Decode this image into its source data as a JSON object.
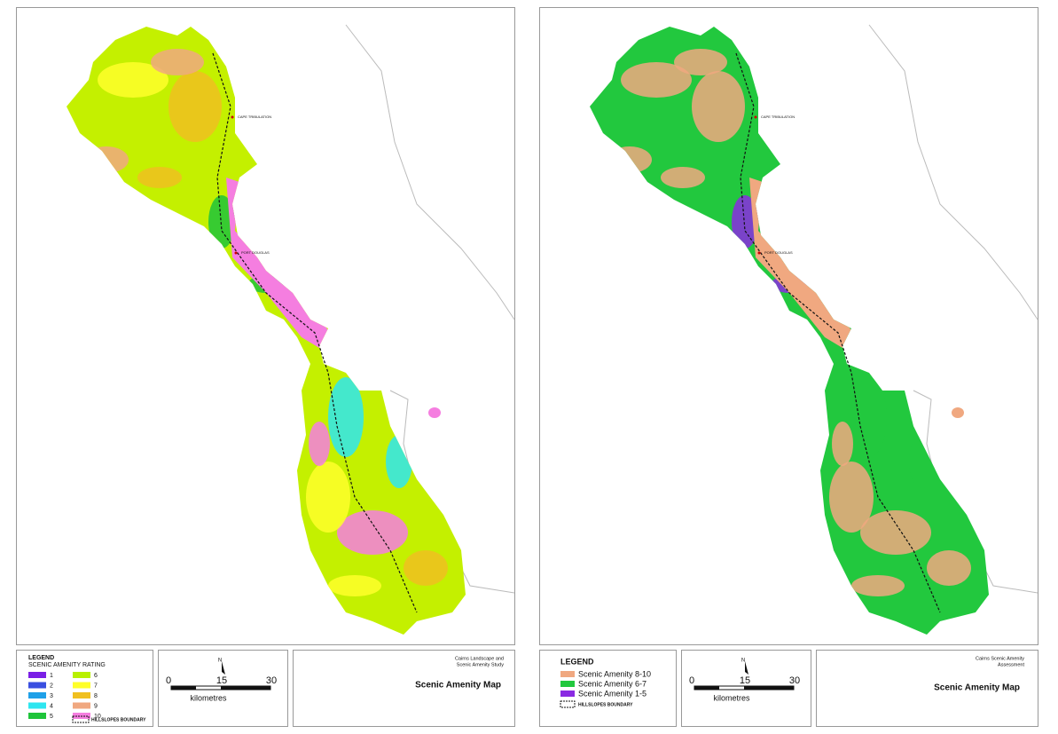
{
  "panels": [
    {
      "legend": {
        "title": "LEGEND",
        "subtitle": "SCENIC AMENITY RATING",
        "items": [
          {
            "label": "1",
            "color": "#7a1fe6"
          },
          {
            "label": "2",
            "color": "#3a4fe0"
          },
          {
            "label": "3",
            "color": "#1fa0e8"
          },
          {
            "label": "4",
            "color": "#2ee6f0"
          },
          {
            "label": "5",
            "color": "#1fc43a"
          },
          {
            "label": "6",
            "color": "#b8f000"
          },
          {
            "label": "7",
            "color": "#ffff2a"
          },
          {
            "label": "8",
            "color": "#f0c020"
          },
          {
            "label": "9",
            "color": "#f0a880"
          },
          {
            "label": "10",
            "color": "#f57ee0"
          }
        ],
        "boundary": "HILLSLOPES BOUNDARY"
      },
      "scale": {
        "north": "N",
        "ticks": [
          "0",
          "15",
          "30"
        ],
        "unit": "kilometres"
      },
      "study": [
        "Cairns Landscape and",
        "Scenic Amenity Study"
      ],
      "map_title": "Scenic Amenity Map",
      "places": [
        "CAPE TRIBULATION",
        "PORT DOUGLAS"
      ]
    },
    {
      "legend": {
        "title": "LEGEND",
        "items": [
          {
            "label": "Scenic Amenity 8-10",
            "color": "#f0a880"
          },
          {
            "label": "Scenic Amenity 6-7",
            "color": "#22c83e"
          },
          {
            "label": "Scenic Amenity 1-5",
            "color": "#8a2be2"
          }
        ],
        "boundary": "HILLSLOPES BOUNDARY"
      },
      "scale": {
        "north": "N",
        "ticks": [
          "0",
          "15",
          "30"
        ],
        "unit": "kilometres"
      },
      "study": [
        "Cairns Scenic Amenity",
        "Assessment"
      ],
      "map_title": "Scenic Amenity Map",
      "places": [
        "CAPE TRIBULATION",
        "PORT DOUGLAS"
      ]
    }
  ]
}
